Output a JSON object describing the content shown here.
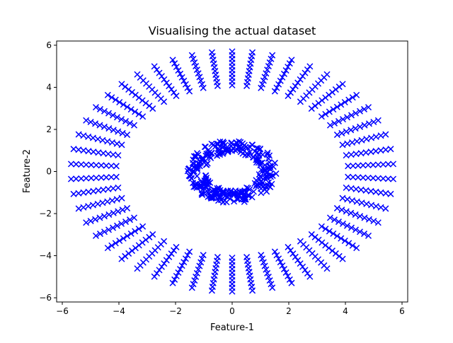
{
  "chart_data": {
    "type": "scatter",
    "title": "Visualising the actual dataset",
    "xlabel": "Feature-1",
    "ylabel": "Feature-2",
    "xlim": [
      -6.2,
      6.2
    ],
    "ylim": [
      -6.2,
      6.2
    ],
    "x_ticks": [
      -6,
      -4,
      -2,
      0,
      2,
      4,
      6
    ],
    "y_ticks": [
      -6,
      -4,
      -2,
      0,
      2,
      4,
      6
    ],
    "x_tick_labels": [
      "−6",
      "−4",
      "−2",
      "0",
      "2",
      "4",
      "6"
    ],
    "y_tick_labels": [
      "−6",
      "−4",
      "−2",
      "0",
      "2",
      "4",
      "6"
    ],
    "grid": false,
    "marker": "x",
    "color": "#0000ff",
    "series": [
      {
        "shape": "ring",
        "center": [
          0,
          0
        ],
        "radius_range": [
          4.1,
          5.7
        ],
        "radial_lines": 50,
        "points_per_line": 10
      },
      {
        "shape": "ring",
        "center": [
          0,
          0
        ],
        "radius_range": [
          0.9,
          1.5
        ],
        "points": 300
      }
    ]
  }
}
